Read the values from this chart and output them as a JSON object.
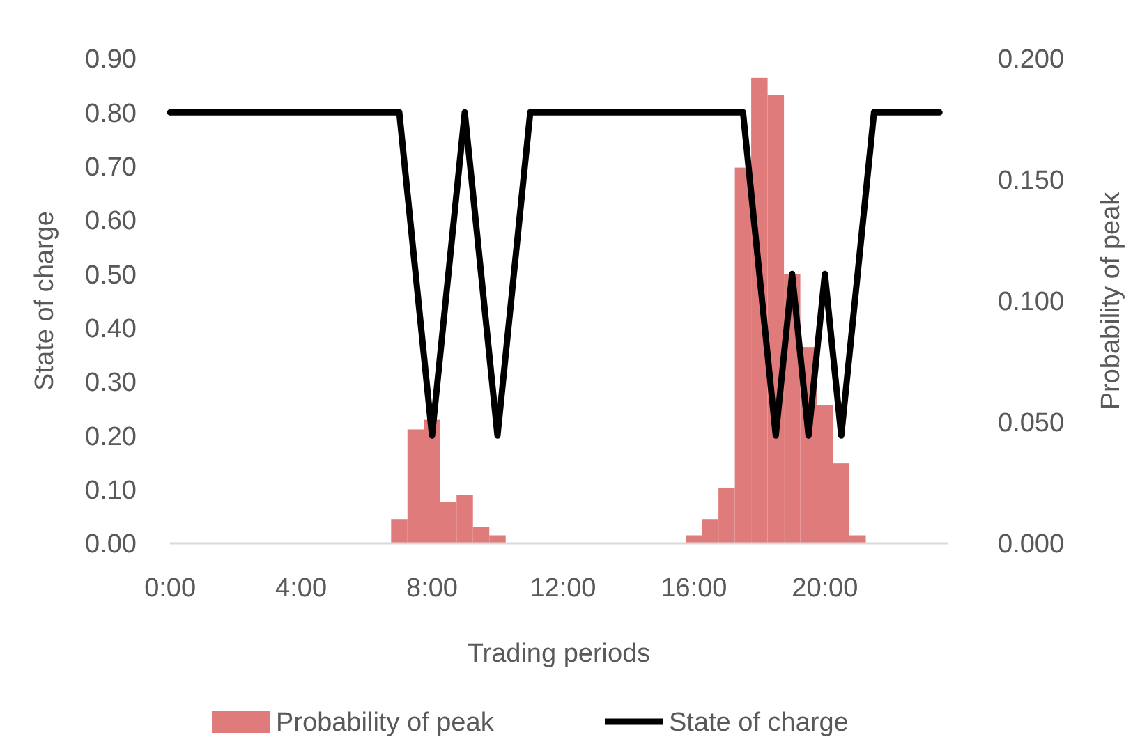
{
  "chart_data": {
    "type": "bar",
    "xlabel": "Trading periods",
    "ylabel": "State of charge",
    "y2label": "Probability of peak",
    "categories": [
      "0:00",
      null,
      null,
      null,
      null,
      null,
      null,
      null,
      "4:00",
      null,
      null,
      null,
      null,
      null,
      null,
      null,
      "8:00",
      null,
      null,
      null,
      null,
      null,
      null,
      null,
      "12:00",
      null,
      null,
      null,
      null,
      null,
      null,
      null,
      "16:00",
      null,
      null,
      null,
      null,
      null,
      null,
      null,
      "20:00",
      null,
      null,
      null,
      null,
      null,
      null,
      null
    ],
    "series": [
      {
        "name": "Probability of peak",
        "axis": "y2",
        "color": "#e07b7b",
        "values": [
          0,
          0,
          0,
          0,
          0,
          0,
          0,
          0,
          0,
          0,
          0,
          0,
          0,
          0,
          0.01,
          0.047,
          0.051,
          0.017,
          0.02,
          0.0067,
          0.0033,
          0,
          0,
          0,
          0,
          0,
          0,
          0,
          0,
          0,
          0,
          0,
          0.0033,
          0.01,
          0.023,
          0.155,
          0.192,
          0.185,
          0.111,
          0.081,
          0.057,
          0.033,
          0.0033,
          0,
          0,
          0,
          0,
          0
        ]
      },
      {
        "name": "State of charge",
        "type": "line",
        "color": "#000000",
        "values": [
          0.8,
          0.8,
          0.8,
          0.8,
          0.8,
          0.8,
          0.8,
          0.8,
          0.8,
          0.8,
          0.8,
          0.8,
          0.8,
          0.8,
          0.8,
          0.5,
          0.2,
          0.5,
          0.8,
          0.5,
          0.2,
          0.5,
          0.8,
          0.8,
          0.8,
          0.8,
          0.8,
          0.8,
          0.8,
          0.8,
          0.8,
          0.8,
          0.8,
          0.8,
          0.8,
          0.8,
          0.5,
          0.2,
          0.5,
          0.2,
          0.5,
          0.2,
          0.5,
          0.8,
          0.8,
          0.8,
          0.8,
          0.8
        ]
      }
    ],
    "ylim": [
      0,
      0.9
    ],
    "yticks": [
      {
        "value": 0,
        "label": "0.00"
      },
      {
        "value": 0.1,
        "label": "0.10"
      },
      {
        "value": 0.2,
        "label": "0.20"
      },
      {
        "value": 0.3,
        "label": "0.30"
      },
      {
        "value": 0.4,
        "label": "0.40"
      },
      {
        "value": 0.5,
        "label": "0.50"
      },
      {
        "value": 0.6,
        "label": "0.60"
      },
      {
        "value": 0.7,
        "label": "0.70"
      },
      {
        "value": 0.8,
        "label": "0.80"
      },
      {
        "value": 0.9,
        "label": "0.90"
      }
    ],
    "y2lim": [
      0,
      0.2
    ],
    "y2ticks": [
      {
        "value": 0,
        "label": "0.000"
      },
      {
        "value": 0.05,
        "label": "0.050"
      },
      {
        "value": 0.1,
        "label": "0.100"
      },
      {
        "value": 0.15,
        "label": "0.150"
      },
      {
        "value": 0.2,
        "label": "0.200"
      }
    ],
    "legend": "bottom",
    "grid": false
  }
}
